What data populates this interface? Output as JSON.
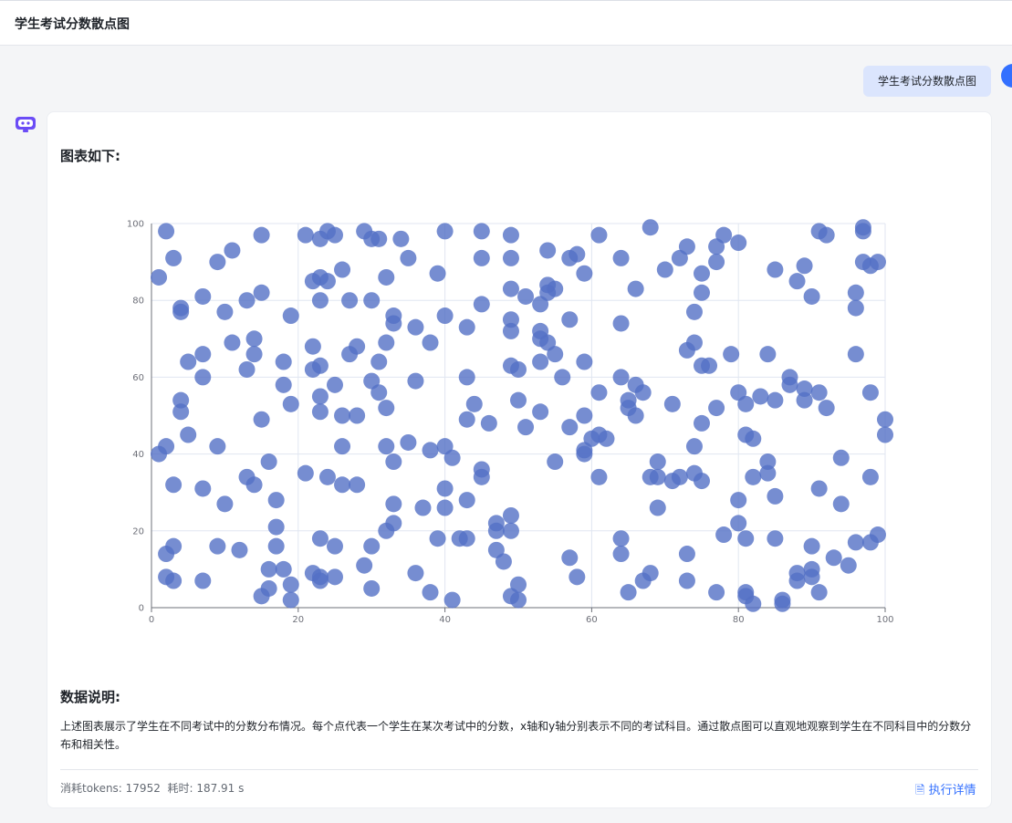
{
  "header": {
    "title": "学生考试分数散点图"
  },
  "user_message": "学生考试分数散点图",
  "answer": {
    "chart_heading": "图表如下:",
    "data_heading": "数据说明:",
    "description": "上述图表展示了学生在不同考试中的分数分布情况。每个点代表一个学生在某次考试中的分数，x轴和y轴分别表示不同的考试科目。通过散点图可以直观地观察到学生在不同科目中的分数分布和相关性。",
    "stats": "消耗tokens: 17952  耗时: 187.91 s",
    "details_label": "执行详情"
  },
  "colors": {
    "series": "#5470c6",
    "accent": "#3370ff",
    "bubble": "#dbe5fd"
  },
  "chart_data": {
    "type": "scatter",
    "title": "",
    "xlabel": "",
    "ylabel": "",
    "xlim": [
      0,
      100
    ],
    "ylim": [
      0,
      100
    ],
    "x_ticks": [
      "0",
      "20",
      "40",
      "60",
      "80",
      "100"
    ],
    "y_ticks": [
      "0",
      "20",
      "40",
      "60",
      "80",
      "100"
    ],
    "grid": true,
    "points": [
      [
        1,
        86
      ],
      [
        2,
        98
      ],
      [
        3,
        91
      ],
      [
        4,
        78
      ],
      [
        4,
        77
      ],
      [
        7,
        81
      ],
      [
        9,
        90
      ],
      [
        11,
        93
      ],
      [
        10,
        77
      ],
      [
        13,
        80
      ],
      [
        15,
        82
      ],
      [
        15,
        97
      ],
      [
        14,
        70
      ],
      [
        11,
        69
      ],
      [
        5,
        64
      ],
      [
        7,
        66
      ],
      [
        7,
        60
      ],
      [
        14,
        66
      ],
      [
        13,
        62
      ],
      [
        18,
        64
      ],
      [
        18,
        58
      ],
      [
        19,
        76
      ],
      [
        19,
        53
      ],
      [
        4,
        54
      ],
      [
        4,
        51
      ],
      [
        5,
        45
      ],
      [
        15,
        49
      ],
      [
        1,
        40
      ],
      [
        2,
        42
      ],
      [
        9,
        42
      ],
      [
        3,
        32
      ],
      [
        7,
        31
      ],
      [
        10,
        27
      ],
      [
        13,
        34
      ],
      [
        14,
        32
      ],
      [
        16,
        38
      ],
      [
        17,
        28
      ],
      [
        17,
        21
      ],
      [
        2,
        14
      ],
      [
        3,
        16
      ],
      [
        2,
        8
      ],
      [
        3,
        7
      ],
      [
        7,
        7
      ],
      [
        9,
        16
      ],
      [
        12,
        15
      ],
      [
        17,
        16
      ],
      [
        16,
        10
      ],
      [
        16,
        5
      ],
      [
        15,
        3
      ],
      [
        18,
        10
      ],
      [
        19,
        6
      ],
      [
        19,
        2
      ],
      [
        21,
        97
      ],
      [
        23,
        96
      ],
      [
        24,
        98
      ],
      [
        25,
        97
      ],
      [
        22,
        85
      ],
      [
        23,
        86
      ],
      [
        24,
        85
      ],
      [
        26,
        88
      ],
      [
        23,
        80
      ],
      [
        27,
        80
      ],
      [
        30,
        80
      ],
      [
        29,
        98
      ],
      [
        30,
        96
      ],
      [
        31,
        96
      ],
      [
        34,
        96
      ],
      [
        35,
        91
      ],
      [
        32,
        86
      ],
      [
        33,
        76
      ],
      [
        33,
        74
      ],
      [
        22,
        68
      ],
      [
        22,
        62
      ],
      [
        23,
        63
      ],
      [
        27,
        66
      ],
      [
        28,
        68
      ],
      [
        32,
        69
      ],
      [
        36,
        73
      ],
      [
        38,
        69
      ],
      [
        39,
        87
      ],
      [
        40,
        98
      ],
      [
        40,
        76
      ],
      [
        31,
        64
      ],
      [
        30,
        59
      ],
      [
        31,
        56
      ],
      [
        25,
        58
      ],
      [
        23,
        55
      ],
      [
        23,
        51
      ],
      [
        26,
        50
      ],
      [
        28,
        50
      ],
      [
        32,
        52
      ],
      [
        36,
        59
      ],
      [
        21,
        35
      ],
      [
        24,
        34
      ],
      [
        26,
        32
      ],
      [
        28,
        32
      ],
      [
        26,
        42
      ],
      [
        32,
        42
      ],
      [
        33,
        38
      ],
      [
        35,
        43
      ],
      [
        38,
        41
      ],
      [
        40,
        42
      ],
      [
        41,
        39
      ],
      [
        40,
        31
      ],
      [
        37,
        26
      ],
      [
        40,
        26
      ],
      [
        33,
        27
      ],
      [
        33,
        22
      ],
      [
        32,
        20
      ],
      [
        23,
        18
      ],
      [
        25,
        16
      ],
      [
        30,
        16
      ],
      [
        29,
        11
      ],
      [
        22,
        9
      ],
      [
        23,
        8
      ],
      [
        23,
        7
      ],
      [
        25,
        8
      ],
      [
        30,
        5
      ],
      [
        36,
        9
      ],
      [
        38,
        4
      ],
      [
        39,
        18
      ],
      [
        42,
        18
      ],
      [
        43,
        18
      ],
      [
        41,
        2
      ],
      [
        43,
        28
      ],
      [
        45,
        98
      ],
      [
        45,
        91
      ],
      [
        45,
        79
      ],
      [
        43,
        73
      ],
      [
        43,
        60
      ],
      [
        44,
        53
      ],
      [
        43,
        49
      ],
      [
        46,
        48
      ],
      [
        45,
        36
      ],
      [
        45,
        34
      ],
      [
        47,
        22
      ],
      [
        47,
        20
      ],
      [
        47,
        15
      ],
      [
        48,
        12
      ],
      [
        49,
        97
      ],
      [
        49,
        91
      ],
      [
        49,
        83
      ],
      [
        49,
        75
      ],
      [
        49,
        72
      ],
      [
        49,
        63
      ],
      [
        50,
        62
      ],
      [
        50,
        54
      ],
      [
        49,
        24
      ],
      [
        49,
        20
      ],
      [
        49,
        3
      ],
      [
        50,
        6
      ],
      [
        50,
        2
      ],
      [
        68,
        99
      ],
      [
        61,
        97
      ],
      [
        54,
        93
      ],
      [
        57,
        91
      ],
      [
        58,
        92
      ],
      [
        59,
        87
      ],
      [
        64,
        91
      ],
      [
        70,
        88
      ],
      [
        72,
        91
      ],
      [
        73,
        94
      ],
      [
        75,
        87
      ],
      [
        77,
        94
      ],
      [
        78,
        97
      ],
      [
        80,
        95
      ],
      [
        77,
        90
      ],
      [
        75,
        82
      ],
      [
        66,
        83
      ],
      [
        51,
        81
      ],
      [
        54,
        84
      ],
      [
        55,
        83
      ],
      [
        54,
        82
      ],
      [
        53,
        79
      ],
      [
        53,
        72
      ],
      [
        53,
        70
      ],
      [
        54,
        69
      ],
      [
        57,
        75
      ],
      [
        55,
        66
      ],
      [
        53,
        64
      ],
      [
        56,
        60
      ],
      [
        59,
        64
      ],
      [
        64,
        74
      ],
      [
        74,
        77
      ],
      [
        74,
        69
      ],
      [
        73,
        67
      ],
      [
        75,
        63
      ],
      [
        76,
        63
      ],
      [
        79,
        66
      ],
      [
        84,
        66
      ],
      [
        85,
        88
      ],
      [
        89,
        89
      ],
      [
        88,
        85
      ],
      [
        90,
        81
      ],
      [
        91,
        98
      ],
      [
        92,
        97
      ],
      [
        97,
        99
      ],
      [
        97,
        98
      ],
      [
        97,
        90
      ],
      [
        98,
        89
      ],
      [
        99,
        90
      ],
      [
        96,
        82
      ],
      [
        96,
        78
      ],
      [
        96,
        66
      ],
      [
        64,
        60
      ],
      [
        66,
        58
      ],
      [
        67,
        56
      ],
      [
        61,
        56
      ],
      [
        53,
        51
      ],
      [
        59,
        50
      ],
      [
        65,
        54
      ],
      [
        65,
        52
      ],
      [
        66,
        50
      ],
      [
        71,
        53
      ],
      [
        77,
        52
      ],
      [
        80,
        56
      ],
      [
        81,
        53
      ],
      [
        83,
        55
      ],
      [
        85,
        54
      ],
      [
        87,
        60
      ],
      [
        87,
        58
      ],
      [
        89,
        57
      ],
      [
        89,
        54
      ],
      [
        91,
        56
      ],
      [
        92,
        52
      ],
      [
        98,
        56
      ],
      [
        100,
        49
      ],
      [
        100,
        45
      ],
      [
        81,
        45
      ],
      [
        82,
        44
      ],
      [
        75,
        48
      ],
      [
        74,
        42
      ],
      [
        51,
        47
      ],
      [
        57,
        47
      ],
      [
        60,
        44
      ],
      [
        61,
        45
      ],
      [
        62,
        44
      ],
      [
        59,
        41
      ],
      [
        59,
        40
      ],
      [
        55,
        38
      ],
      [
        61,
        34
      ],
      [
        69,
        38
      ],
      [
        68,
        34
      ],
      [
        69,
        34
      ],
      [
        71,
        33
      ],
      [
        72,
        34
      ],
      [
        74,
        35
      ],
      [
        75,
        33
      ],
      [
        69,
        26
      ],
      [
        80,
        28
      ],
      [
        82,
        34
      ],
      [
        84,
        38
      ],
      [
        84,
        35
      ],
      [
        85,
        29
      ],
      [
        94,
        39
      ],
      [
        98,
        34
      ],
      [
        91,
        31
      ],
      [
        94,
        27
      ],
      [
        80,
        22
      ],
      [
        78,
        19
      ],
      [
        81,
        18
      ],
      [
        85,
        18
      ],
      [
        90,
        16
      ],
      [
        96,
        17
      ],
      [
        98,
        17
      ],
      [
        99,
        19
      ],
      [
        93,
        13
      ],
      [
        95,
        11
      ],
      [
        88,
        9
      ],
      [
        88,
        7
      ],
      [
        90,
        10
      ],
      [
        90,
        8
      ],
      [
        91,
        4
      ],
      [
        86,
        2
      ],
      [
        86,
        1
      ],
      [
        82,
        1
      ],
      [
        81,
        4
      ],
      [
        81,
        3
      ],
      [
        77,
        4
      ],
      [
        73,
        7
      ],
      [
        73,
        14
      ],
      [
        68,
        9
      ],
      [
        67,
        7
      ],
      [
        65,
        4
      ],
      [
        64,
        18
      ],
      [
        64,
        14
      ],
      [
        57,
        13
      ],
      [
        58,
        8
      ]
    ]
  }
}
